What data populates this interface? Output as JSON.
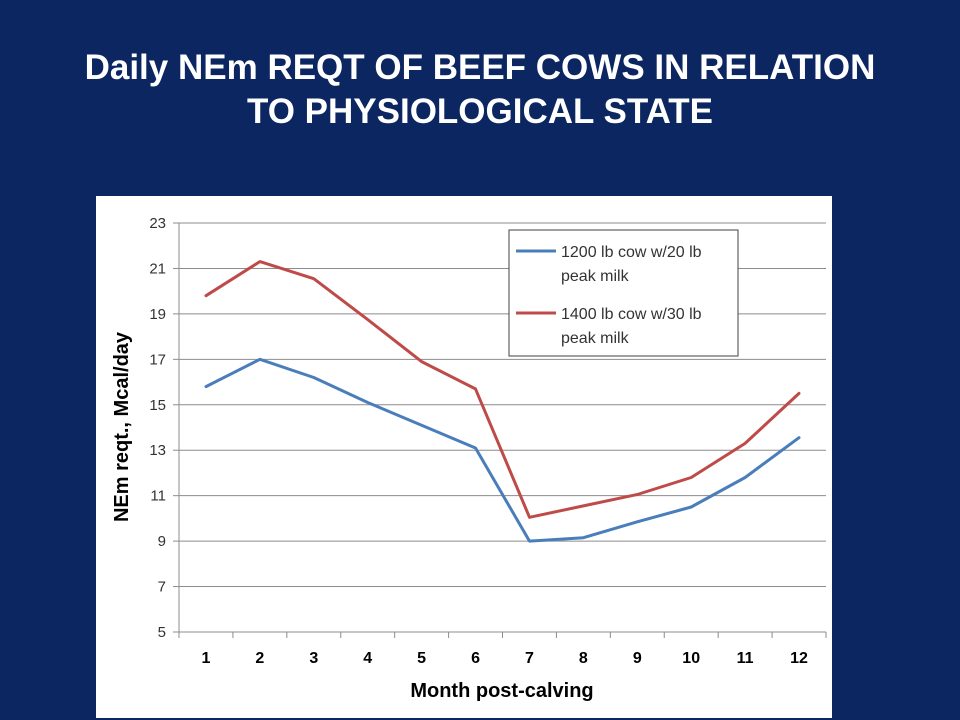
{
  "slide": {
    "title_line1": "Daily NEm REQT OF BEEF COWS IN RELATION",
    "title_line2": "TO PHYSIOLOGICAL STATE"
  },
  "colors": {
    "background": "#0b2660",
    "series1": "#4a7ebb",
    "series2": "#be4b48",
    "grid": "#8c8c8c"
  },
  "chart_data": {
    "type": "line",
    "title": "",
    "xlabel": "Month post-calving",
    "ylabel": "NEm reqt., Mcal/day",
    "x": [
      1,
      2,
      3,
      4,
      5,
      6,
      7,
      8,
      9,
      10,
      11,
      12
    ],
    "ylim": [
      5,
      23
    ],
    "yticks": [
      5,
      7,
      9,
      11,
      13,
      15,
      17,
      19,
      21,
      23
    ],
    "grid": true,
    "legend_position": "top-right",
    "series": [
      {
        "name_line1": "1200 lb cow w/20 lb",
        "name_line2": "peak milk",
        "values": [
          15.8,
          17.0,
          16.2,
          15.1,
          14.1,
          13.1,
          9.0,
          9.15,
          9.85,
          10.5,
          11.8,
          13.55
        ]
      },
      {
        "name_line1": "1400 lb cow w/30 lb",
        "name_line2": "peak milk",
        "values": [
          19.8,
          21.3,
          20.55,
          18.75,
          16.9,
          15.7,
          10.05,
          10.55,
          11.05,
          11.8,
          13.3,
          15.5
        ]
      }
    ]
  }
}
